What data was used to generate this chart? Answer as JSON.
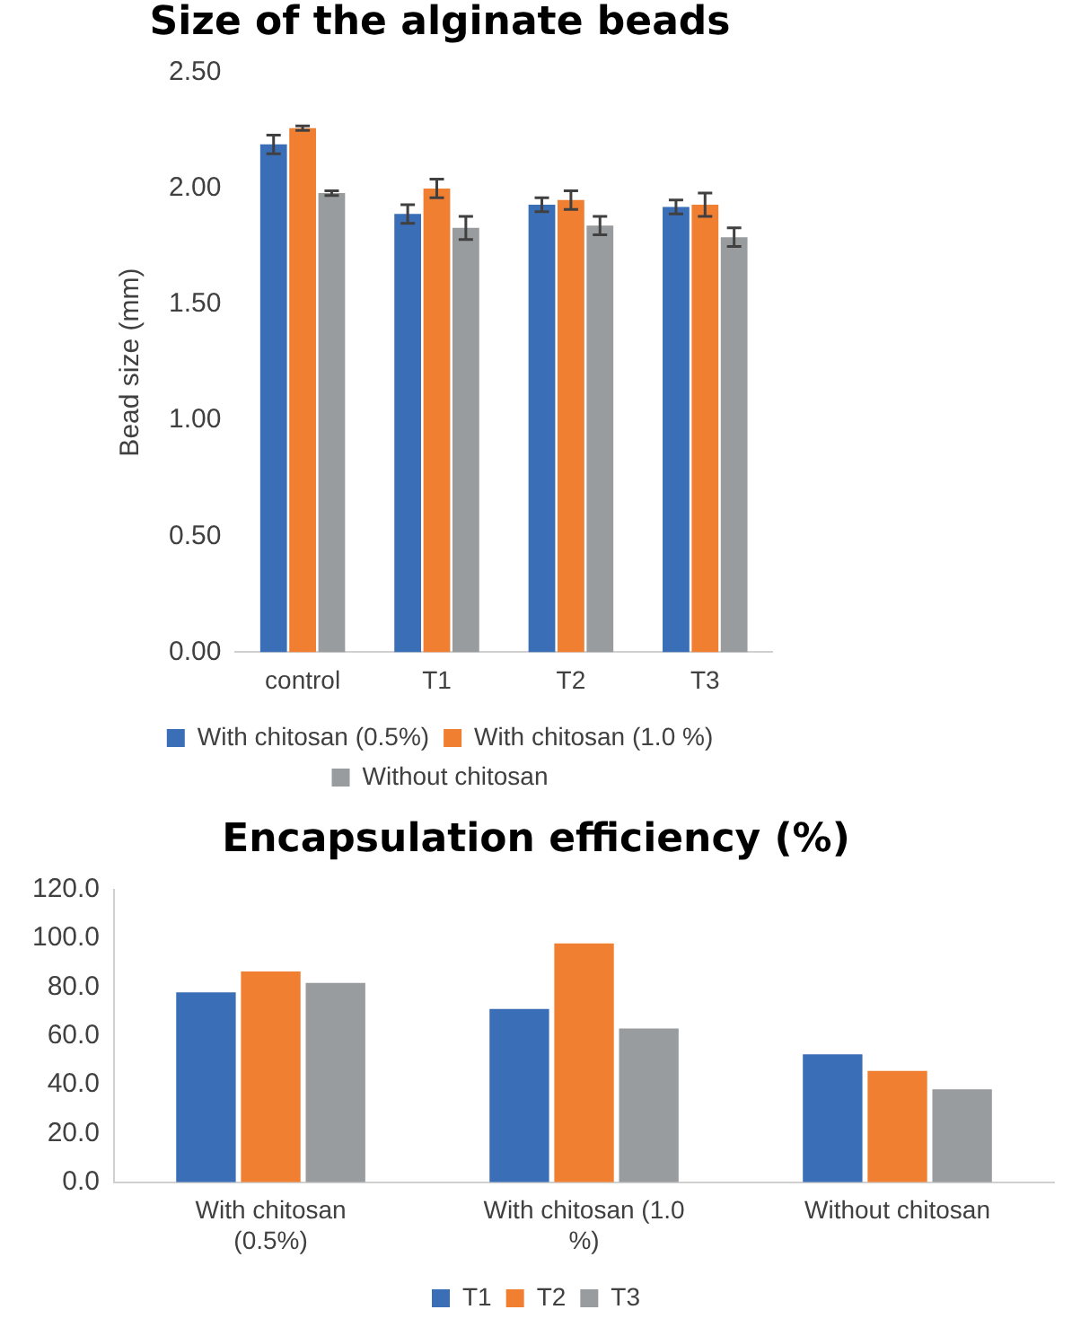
{
  "chart_data": [
    {
      "type": "bar",
      "title": "Size of the alginate beads",
      "ylabel": "Bead size (mm)",
      "categories": [
        "control",
        "T1",
        "T2",
        "T3"
      ],
      "ylim": [
        0,
        2.5
      ],
      "yticks": [
        {
          "value": 0,
          "label": "0.00"
        },
        {
          "value": 0.5,
          "label": "0.50"
        },
        {
          "value": 1,
          "label": "1.00"
        },
        {
          "value": 1.5,
          "label": "1.50"
        },
        {
          "value": 2,
          "label": "2.00"
        },
        {
          "value": 2.5,
          "label": "2.50"
        }
      ],
      "grid": false,
      "legend": "bottom",
      "series": [
        {
          "name": "With chitosan (0.5%)",
          "color": "#3a6fb7",
          "values": [
            2.19,
            1.89,
            1.93,
            1.92
          ],
          "errors": [
            0.04,
            0.04,
            0.03,
            0.03
          ]
        },
        {
          "name": "With chitosan (1.0 %)",
          "color": "#f07f32",
          "values": [
            2.26,
            2.0,
            1.95,
            1.93
          ],
          "errors": [
            0.01,
            0.04,
            0.04,
            0.05
          ]
        },
        {
          "name": "Without chitosan",
          "color": "#999c9e",
          "values": [
            1.98,
            1.83,
            1.84,
            1.79
          ],
          "errors": [
            0.01,
            0.05,
            0.04,
            0.04
          ]
        }
      ]
    },
    {
      "type": "bar",
      "title": "Encapsulation efficiency (%)",
      "categories": [
        "With chitosan (0.5%)",
        "With chitosan (1.0 %)",
        "Without chitosan"
      ],
      "ylim": [
        0,
        120
      ],
      "yticks": [
        {
          "value": 0,
          "label": "0.0"
        },
        {
          "value": 20,
          "label": "20.0"
        },
        {
          "value": 40,
          "label": "40.0"
        },
        {
          "value": 60,
          "label": "60.0"
        },
        {
          "value": 80,
          "label": "80.0"
        },
        {
          "value": 100,
          "label": "100.0"
        },
        {
          "value": 120,
          "label": "120.0"
        }
      ],
      "grid": false,
      "legend": "bottom",
      "series": [
        {
          "name": "T1",
          "color": "#3a6fb7",
          "values": [
            77.9,
            71.1,
            52.5
          ]
        },
        {
          "name": "T2",
          "color": "#f07f32",
          "values": [
            86.4,
            97.9,
            45.7
          ]
        },
        {
          "name": "T3",
          "color": "#999c9e",
          "values": [
            81.7,
            63.1,
            38.1
          ]
        }
      ]
    }
  ]
}
